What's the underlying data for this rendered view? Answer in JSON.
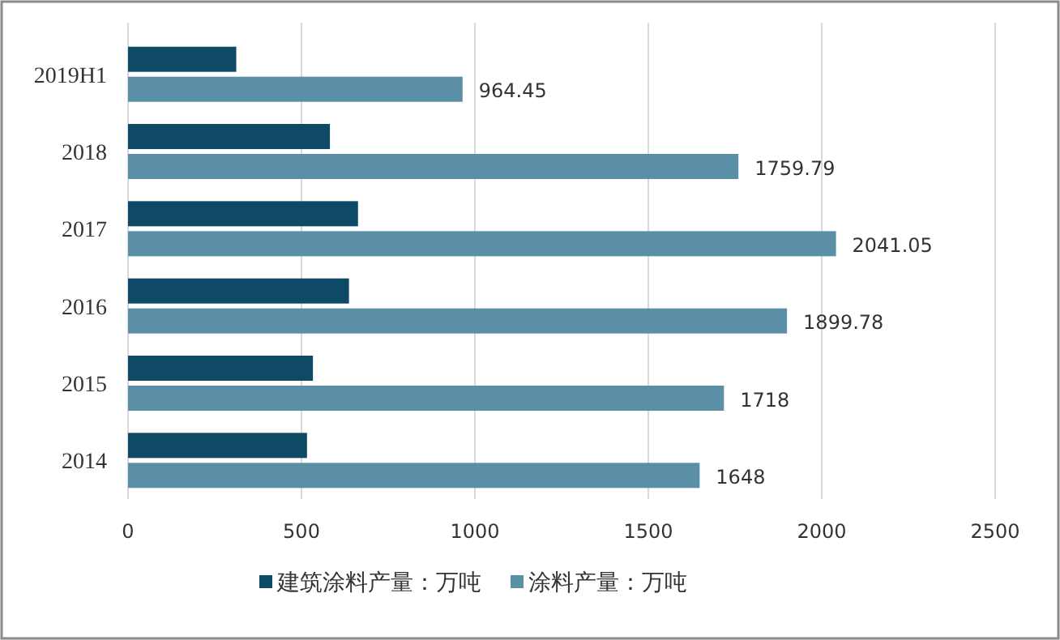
{
  "chart_data": {
    "type": "bar",
    "orientation": "horizontal",
    "categories": [
      "2019H1",
      "2018",
      "2017",
      "2016",
      "2015",
      "2014"
    ],
    "series": [
      {
        "name": "建筑涂料产量：万吨",
        "color": "#0e4a66",
        "values": [
          312,
          582,
          663,
          637,
          533,
          516
        ]
      },
      {
        "name": "涂料产量：万吨",
        "color": "#5b8fa8",
        "values": [
          964.45,
          1759.79,
          2041.05,
          1899.78,
          1718,
          1648
        ],
        "value_labels": [
          "964.45",
          "1759.79",
          "2041.05",
          "1899.78",
          "1718",
          "1648"
        ]
      }
    ],
    "xlim": [
      0,
      2500
    ],
    "xticks": [
      0,
      500,
      1000,
      1500,
      2000,
      2500
    ],
    "grid": "x",
    "legend": "bottom"
  }
}
